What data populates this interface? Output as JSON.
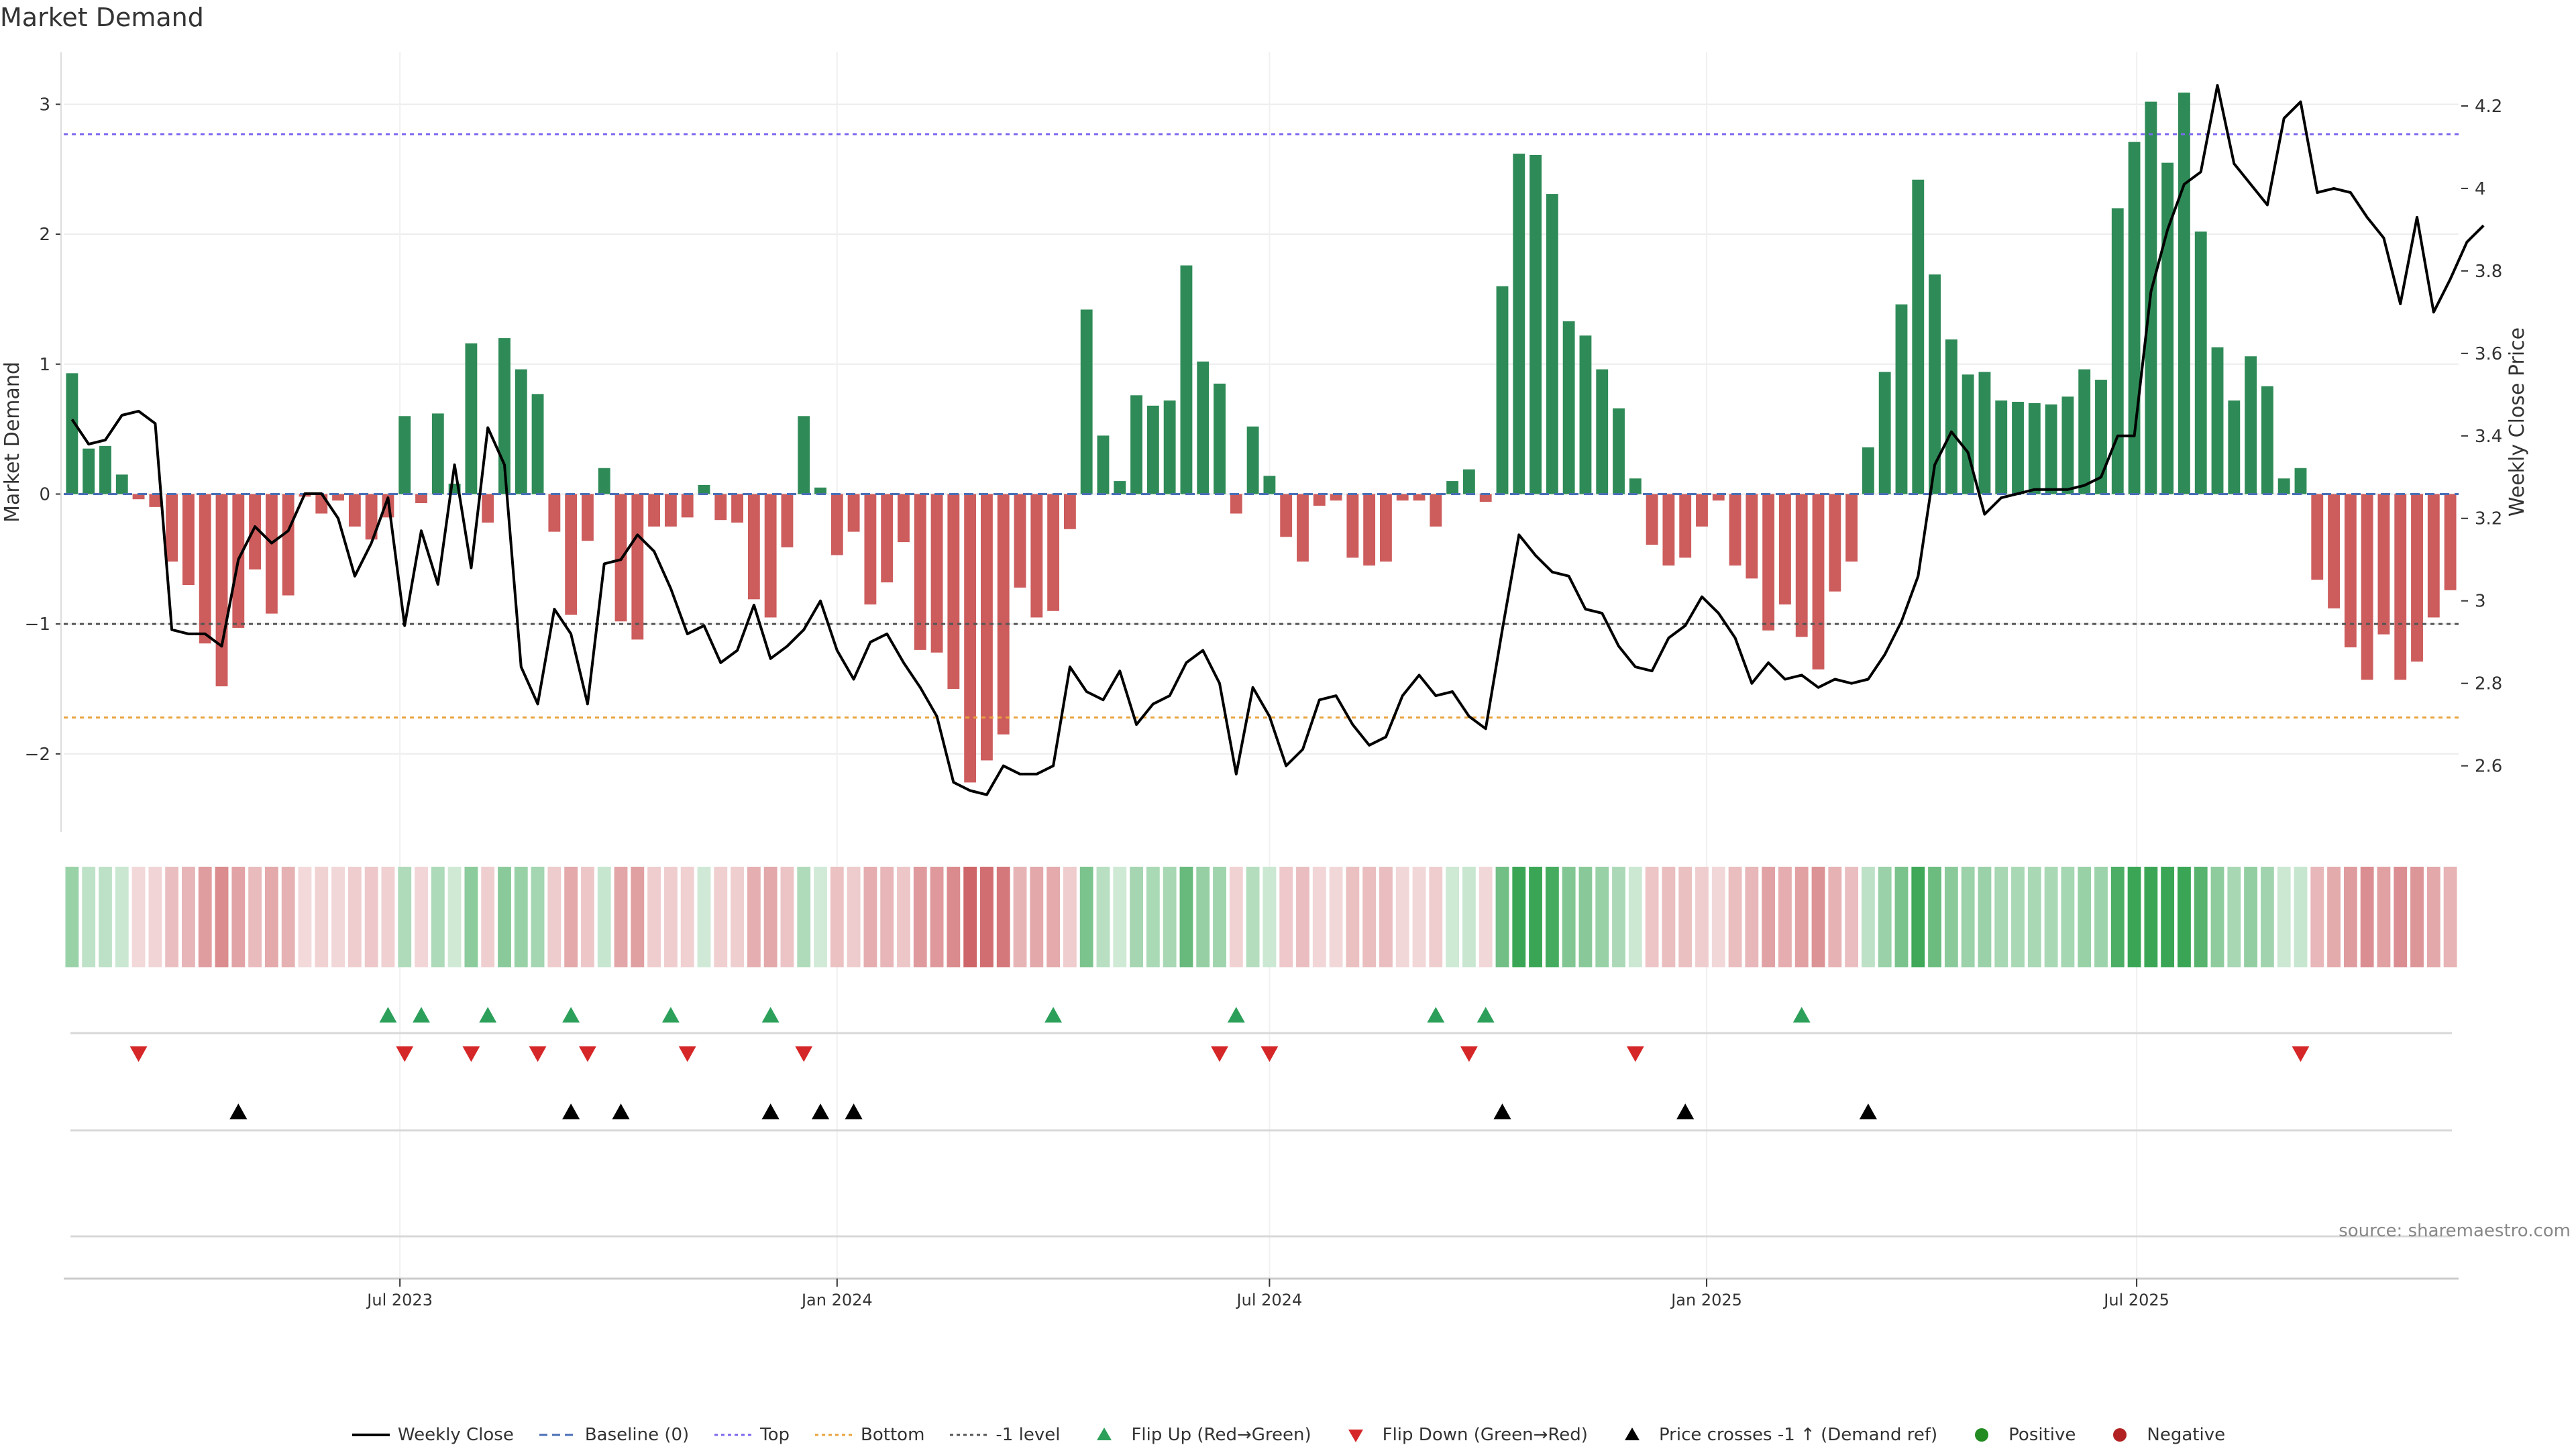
{
  "title": "Market Demand",
  "source": "source: sharemaestro.com",
  "colors": {
    "positive": "#2e8b57",
    "negative": "#cd5c5c",
    "price": "#000000",
    "top": "#7b68ee",
    "bottom": "#e8a33d",
    "minus_one": "#555555",
    "flip_up": "#2ca05a",
    "flip_down": "#d62728",
    "crosses": "#000000"
  },
  "chart_data": {
    "type": "bar",
    "title": "Market Demand",
    "ylabel": "Market Demand",
    "y2label": "Weekly Close Price",
    "ylim": [
      -2.6,
      3.4
    ],
    "y2lim": [
      2.44,
      4.33
    ],
    "yticks": [
      -2,
      -1,
      0,
      1,
      2,
      3
    ],
    "y2ticks": [
      2.6,
      2.8,
      3,
      3.2,
      3.4,
      3.6,
      3.8,
      4,
      4.2
    ],
    "ytick_labels": [
      "−2",
      "−1",
      "0",
      "1",
      "2",
      "3"
    ],
    "y2tick_labels": [
      "2.6",
      "2.8",
      "3",
      "3.2",
      "3.4",
      "3.6",
      "3.8",
      "4",
      "4.2"
    ],
    "x_start": "2023-02-13",
    "bar_interval_days": 7,
    "xticks": [
      {
        "label": "Jul 2023",
        "date": "2023-07-01"
      },
      {
        "label": "Jan 2024",
        "date": "2024-01-01"
      },
      {
        "label": "Jul 2024",
        "date": "2024-07-01"
      },
      {
        "label": "Jan 2025",
        "date": "2025-01-01"
      },
      {
        "label": "Jul 2025",
        "date": "2025-07-01"
      }
    ],
    "levels": {
      "top": 2.77,
      "bottom": -1.72,
      "minus_one": -1.0,
      "baseline": 0
    },
    "demand": [
      0.93,
      0.35,
      0.37,
      0.15,
      -0.04,
      -0.1,
      -0.52,
      -0.7,
      -1.15,
      -1.48,
      -1.03,
      -0.58,
      -0.92,
      -0.78,
      -0.02,
      -0.15,
      -0.05,
      -0.25,
      -0.35,
      -0.18,
      0.6,
      -0.07,
      0.62,
      0.08,
      1.16,
      -0.22,
      1.2,
      0.96,
      0.77,
      -0.29,
      -0.93,
      -0.36,
      0.2,
      -0.98,
      -1.12,
      -0.25,
      -0.25,
      -0.18,
      0.07,
      -0.2,
      -0.22,
      -0.81,
      -0.95,
      -0.41,
      0.6,
      0.05,
      -0.47,
      -0.29,
      -0.85,
      -0.68,
      -0.37,
      -1.2,
      -1.22,
      -1.5,
      -2.22,
      -2.05,
      -1.85,
      -0.72,
      -0.95,
      -0.9,
      -0.27,
      1.42,
      0.45,
      0.1,
      0.76,
      0.68,
      0.72,
      1.76,
      1.02,
      0.85,
      -0.15,
      0.52,
      0.14,
      -0.33,
      -0.52,
      -0.09,
      -0.05,
      -0.49,
      -0.55,
      -0.52,
      -0.05,
      -0.05,
      -0.25,
      0.1,
      0.19,
      -0.06,
      1.6,
      2.62,
      2.61,
      2.31,
      1.33,
      1.22,
      0.96,
      0.66,
      0.12,
      -0.39,
      -0.55,
      -0.49,
      -0.25,
      -0.05,
      -0.55,
      -0.65,
      -1.05,
      -0.85,
      -1.1,
      -1.35,
      -0.75,
      -0.52,
      0.36,
      0.94,
      1.46,
      2.42,
      1.69,
      1.19,
      0.92,
      0.94,
      0.72,
      0.71,
      0.7,
      0.69,
      0.75,
      0.96,
      0.88,
      2.2,
      2.71,
      3.02,
      2.55,
      3.09,
      2.02,
      1.13,
      0.72,
      1.06,
      0.83,
      0.12,
      0.2,
      -0.66,
      -0.88,
      -1.18,
      -1.43,
      -1.08,
      -1.43,
      -1.29,
      -0.95,
      -0.74
    ],
    "price": [
      3.44,
      3.38,
      3.39,
      3.45,
      3.46,
      3.43,
      2.93,
      2.92,
      2.92,
      2.89,
      3.1,
      3.18,
      3.14,
      3.17,
      3.26,
      3.26,
      3.2,
      3.06,
      3.14,
      3.25,
      2.94,
      3.17,
      3.04,
      3.33,
      3.08,
      3.42,
      3.33,
      2.84,
      2.75,
      2.98,
      2.92,
      2.75,
      3.09,
      3.1,
      3.16,
      3.12,
      3.03,
      2.92,
      2.94,
      2.85,
      2.88,
      2.99,
      2.86,
      2.89,
      2.93,
      3.0,
      2.88,
      2.81,
      2.9,
      2.92,
      2.85,
      2.79,
      2.72,
      2.56,
      2.54,
      2.53,
      2.6,
      2.58,
      2.58,
      2.6,
      2.84,
      2.78,
      2.76,
      2.83,
      2.7,
      2.75,
      2.77,
      2.85,
      2.88,
      2.8,
      2.58,
      2.79,
      2.72,
      2.6,
      2.64,
      2.76,
      2.77,
      2.7,
      2.65,
      2.67,
      2.77,
      2.82,
      2.77,
      2.78,
      2.72,
      2.69,
      2.93,
      3.16,
      3.11,
      3.07,
      3.06,
      2.98,
      2.97,
      2.89,
      2.84,
      2.83,
      2.91,
      2.94,
      3.01,
      2.97,
      2.91,
      2.8,
      2.85,
      2.81,
      2.82,
      2.79,
      2.81,
      2.8,
      2.81,
      2.87,
      2.95,
      3.06,
      3.33,
      3.41,
      3.36,
      3.21,
      3.25,
      3.26,
      3.27,
      3.27,
      3.27,
      3.28,
      3.3,
      3.4,
      3.4,
      3.75,
      3.9,
      4.01,
      4.04,
      4.25,
      4.06,
      4.01,
      3.96,
      4.17,
      4.21,
      3.99,
      4.0,
      3.99,
      3.93,
      3.88,
      3.72,
      3.93,
      3.7,
      3.78,
      3.87,
      3.91
    ],
    "flip_up": [
      19,
      21,
      25,
      30,
      36,
      42,
      59,
      70,
      82,
      85,
      104
    ],
    "flip_down": [
      4,
      20,
      24,
      28,
      31,
      37,
      44,
      69,
      72,
      84,
      94,
      134
    ],
    "price_crosses": [
      10,
      30,
      33,
      42,
      45,
      47,
      86,
      97,
      108
    ]
  },
  "legend": [
    {
      "label": "Weekly Close",
      "kind": "line-solid"
    },
    {
      "label": "Baseline (0)",
      "kind": "line-dashed"
    },
    {
      "label": "Top",
      "kind": "line-dotted-top"
    },
    {
      "label": "Bottom",
      "kind": "line-dotted-bottom"
    },
    {
      "label": "-1 level",
      "kind": "line-dotted-minus"
    },
    {
      "label": "Flip Up (Red→Green)",
      "kind": "tri-up-green"
    },
    {
      "label": "Flip Down (Green→Red)",
      "kind": "tri-down-red"
    },
    {
      "label": "Price crosses -1 ↑ (Demand ref)",
      "kind": "tri-up-black"
    },
    {
      "label": "Positive",
      "kind": "dot-green"
    },
    {
      "label": "Negative",
      "kind": "dot-red"
    }
  ]
}
